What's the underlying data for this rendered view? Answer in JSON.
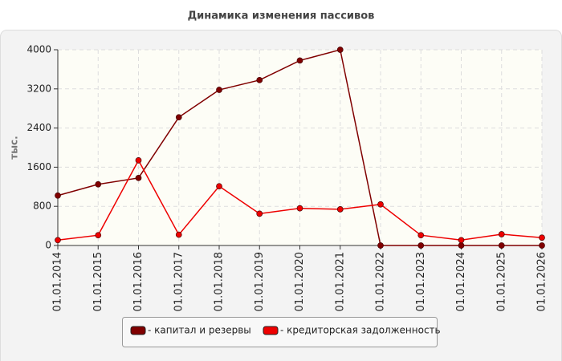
{
  "chart_data": {
    "type": "line",
    "title": "Динамика изменения пассивов",
    "y_label": "тыс.",
    "categories": [
      "01.01.2014",
      "01.01.2015",
      "01.01.2016",
      "01.01.2017",
      "01.01.2018",
      "01.01.2019",
      "01.01.2020",
      "01.01.2021",
      "01.01.2022",
      "01.01.2023",
      "01.01.2024",
      "01.01.2025",
      "01.01.2026"
    ],
    "series": [
      {
        "name": "- капитал и резервы",
        "color": "#800000",
        "values": [
          1020,
          1250,
          1380,
          2620,
          3180,
          3380,
          3780,
          4000,
          0,
          0,
          0,
          0,
          0
        ]
      },
      {
        "name": "- кредиторская задолженность",
        "color": "#ee0000",
        "values": [
          110,
          210,
          1740,
          220,
          1210,
          650,
          760,
          740,
          840,
          210,
          110,
          230,
          160
        ]
      }
    ],
    "ylim": [
      0,
      4000
    ],
    "yticks": [
      0,
      800,
      1600,
      2400,
      3200,
      4000
    ],
    "grid": true
  }
}
